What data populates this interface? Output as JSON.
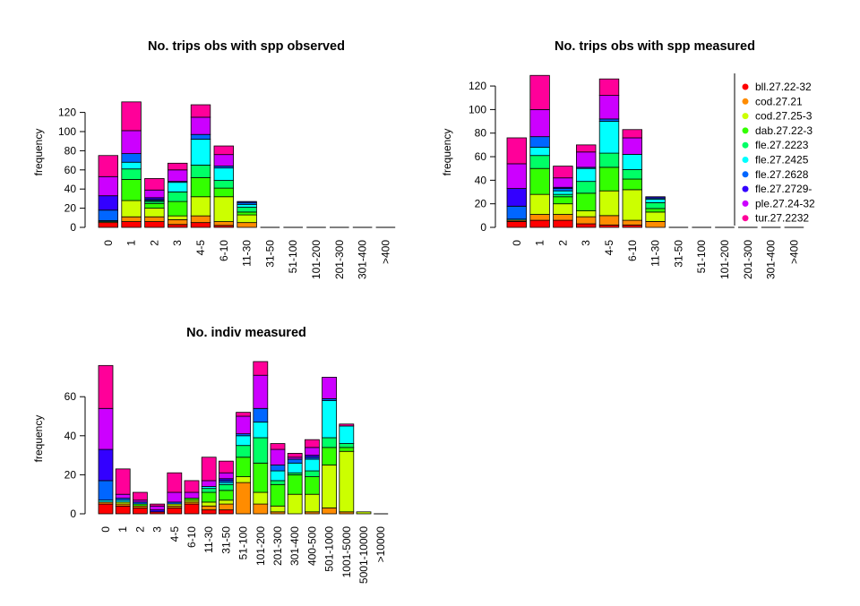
{
  "colors": {
    "bll.27.22-32": "#FF0000",
    "cod.27.21": "#FF8C00",
    "cod.27.25-3": "#CCFF00",
    "dab.27.22-3": "#33FF00",
    "fle.27.2223": "#00FF66",
    "fle.27.2425": "#00FFFF",
    "fle.27.2628": "#0066FF",
    "fle.27.2729-": "#3300FF",
    "ple.27.24-32": "#CC00FF",
    "tur.27.2232": "#FF0099"
  },
  "legend": {
    "entries": [
      "bll.27.22-32",
      "cod.27.21",
      "cod.27.25-3",
      "dab.27.22-3",
      "fle.27.2223",
      "fle.27.2425",
      "fle.27.2628",
      "fle.27.2729-",
      "ple.27.24-32",
      "tur.27.2232"
    ]
  },
  "chart_data": [
    {
      "type": "bar",
      "stacked": true,
      "title": "No. trips obs with spp observed",
      "ylabel": "frequency",
      "ylim": [
        0,
        130
      ],
      "yticks": [
        0,
        20,
        40,
        60,
        80,
        100,
        120
      ],
      "categories": [
        "0",
        "1",
        "2",
        "3",
        "4-5",
        "6-10",
        "11-30",
        "31-50",
        "51-100",
        "101-200",
        "201-300",
        "301-400",
        ">400"
      ],
      "series": [
        {
          "name": "bll.27.22-32",
          "values": [
            5,
            6,
            6,
            3,
            5,
            2,
            0,
            0,
            0,
            0,
            0,
            0,
            0
          ]
        },
        {
          "name": "cod.27.21",
          "values": [
            1,
            5,
            5,
            5,
            7,
            4,
            5,
            0,
            0,
            0,
            0,
            0,
            0
          ]
        },
        {
          "name": "cod.27.25-3",
          "values": [
            0,
            17,
            9,
            4,
            20,
            26,
            8,
            0,
            0,
            0,
            0,
            0,
            0
          ]
        },
        {
          "name": "dab.27.22-3",
          "values": [
            0,
            22,
            5,
            15,
            20,
            9,
            3,
            0,
            0,
            0,
            0,
            0,
            0
          ]
        },
        {
          "name": "fle.27.2223",
          "values": [
            0,
            11,
            2,
            10,
            13,
            8,
            5,
            0,
            0,
            0,
            0,
            0,
            0
          ]
        },
        {
          "name": "fle.27.2425",
          "values": [
            1,
            7,
            1,
            10,
            27,
            13,
            3,
            0,
            0,
            0,
            0,
            0,
            0
          ]
        },
        {
          "name": "fle.27.2628",
          "values": [
            11,
            9,
            1,
            1,
            5,
            2,
            2,
            0,
            0,
            0,
            0,
            0,
            0
          ]
        },
        {
          "name": "fle.27.2729-",
          "values": [
            15,
            0,
            2,
            0,
            0,
            0,
            1,
            0,
            0,
            0,
            0,
            0,
            0
          ]
        },
        {
          "name": "ple.27.24-32",
          "values": [
            20,
            24,
            8,
            12,
            18,
            12,
            0,
            0,
            0,
            0,
            0,
            0,
            0
          ]
        },
        {
          "name": "tur.27.2232",
          "values": [
            22,
            30,
            12,
            7,
            13,
            9,
            0,
            0,
            0,
            0,
            0,
            0,
            0
          ]
        }
      ]
    },
    {
      "type": "bar",
      "stacked": true,
      "title": "No. trips obs with spp measured",
      "ylabel": "frequency",
      "ylim": [
        0,
        130
      ],
      "yticks": [
        0,
        20,
        40,
        60,
        80,
        100,
        120
      ],
      "legend_position": "right",
      "categories": [
        "0",
        "1",
        "2",
        "3",
        "4-5",
        "6-10",
        "11-30",
        "31-50",
        "51-100",
        "101-200",
        "201-300",
        "301-400",
        ">400"
      ],
      "series": [
        {
          "name": "bll.27.22-32",
          "values": [
            5,
            6,
            6,
            3,
            2,
            2,
            0,
            0,
            0,
            0,
            0,
            0,
            0
          ]
        },
        {
          "name": "cod.27.21",
          "values": [
            1,
            5,
            5,
            6,
            8,
            4,
            5,
            0,
            0,
            0,
            0,
            0,
            0
          ]
        },
        {
          "name": "cod.27.25-3",
          "values": [
            0,
            17,
            9,
            5,
            21,
            26,
            8,
            0,
            0,
            0,
            0,
            0,
            0
          ]
        },
        {
          "name": "dab.27.22-3",
          "values": [
            0,
            22,
            6,
            15,
            20,
            9,
            3,
            0,
            0,
            0,
            0,
            0,
            0
          ]
        },
        {
          "name": "fle.27.2223",
          "values": [
            0,
            11,
            2,
            10,
            12,
            8,
            5,
            0,
            0,
            0,
            0,
            0,
            0
          ]
        },
        {
          "name": "fle.27.2425",
          "values": [
            1,
            7,
            3,
            11,
            27,
            13,
            3,
            0,
            0,
            0,
            0,
            0,
            0
          ]
        },
        {
          "name": "fle.27.2628",
          "values": [
            11,
            9,
            2,
            1,
            2,
            0,
            1,
            0,
            0,
            0,
            0,
            0,
            0
          ]
        },
        {
          "name": "fle.27.2729-",
          "values": [
            15,
            0,
            1,
            0,
            0,
            0,
            1,
            0,
            0,
            0,
            0,
            0,
            0
          ]
        },
        {
          "name": "ple.27.24-32",
          "values": [
            21,
            23,
            8,
            13,
            20,
            14,
            0,
            0,
            0,
            0,
            0,
            0,
            0
          ]
        },
        {
          "name": "tur.27.2232",
          "values": [
            22,
            29,
            10,
            6,
            14,
            7,
            0,
            0,
            0,
            0,
            0,
            0,
            0
          ]
        }
      ]
    },
    {
      "type": "bar",
      "stacked": true,
      "title": "No. indiv measured",
      "ylabel": "frequency",
      "ylim": [
        0,
        80
      ],
      "yticks": [
        0,
        20,
        40,
        60
      ],
      "categories": [
        "0",
        "1",
        "2",
        "3",
        "4-5",
        "6-10",
        "11-30",
        "31-50",
        "51-100",
        "101-200",
        "201-300",
        "301-400",
        "400-500",
        "501-1000",
        "1001-5000",
        "5001-10000",
        ">10000"
      ],
      "series": [
        {
          "name": "bll.27.22-32",
          "values": [
            5,
            4,
            3,
            1,
            3,
            5,
            2,
            2,
            0,
            0,
            0,
            0,
            0,
            0,
            0,
            0,
            0
          ]
        },
        {
          "name": "cod.27.21",
          "values": [
            1,
            1,
            1,
            0,
            1,
            1,
            2,
            3,
            16,
            5,
            1,
            0,
            1,
            3,
            1,
            0,
            0
          ]
        },
        {
          "name": "cod.27.25-3",
          "values": [
            0,
            1,
            0,
            0,
            1,
            1,
            2,
            2,
            3,
            6,
            3,
            10,
            9,
            22,
            31,
            1,
            0
          ]
        },
        {
          "name": "dab.27.22-3",
          "values": [
            0,
            0,
            1,
            0,
            0,
            1,
            5,
            5,
            10,
            15,
            11,
            10,
            9,
            9,
            2,
            0,
            0
          ]
        },
        {
          "name": "fle.27.2223",
          "values": [
            0,
            0,
            0,
            0,
            0,
            0,
            2,
            3,
            6,
            13,
            2,
            1,
            3,
            5,
            2,
            0,
            0
          ]
        },
        {
          "name": "fle.27.2425",
          "values": [
            1,
            1,
            0,
            0,
            0,
            0,
            1,
            1,
            5,
            8,
            5,
            5,
            6,
            19,
            9,
            0,
            0
          ]
        },
        {
          "name": "fle.27.2628",
          "values": [
            10,
            1,
            1,
            0,
            1,
            0,
            0,
            1,
            1,
            7,
            3,
            2,
            1,
            1,
            0,
            0,
            0
          ]
        },
        {
          "name": "fle.27.2729-",
          "values": [
            16,
            0,
            0,
            1,
            0,
            0,
            0,
            1,
            0,
            0,
            0,
            0,
            1,
            0,
            0,
            0,
            0
          ]
        },
        {
          "name": "ple.27.24-32",
          "values": [
            21,
            2,
            1,
            2,
            5,
            3,
            3,
            3,
            9,
            17,
            8,
            1,
            4,
            11,
            0,
            0,
            0
          ]
        },
        {
          "name": "tur.27.2232",
          "values": [
            22,
            13,
            4,
            1,
            10,
            6,
            12,
            6,
            2,
            7,
            3,
            2,
            4,
            0,
            1,
            0,
            0
          ]
        }
      ]
    }
  ]
}
